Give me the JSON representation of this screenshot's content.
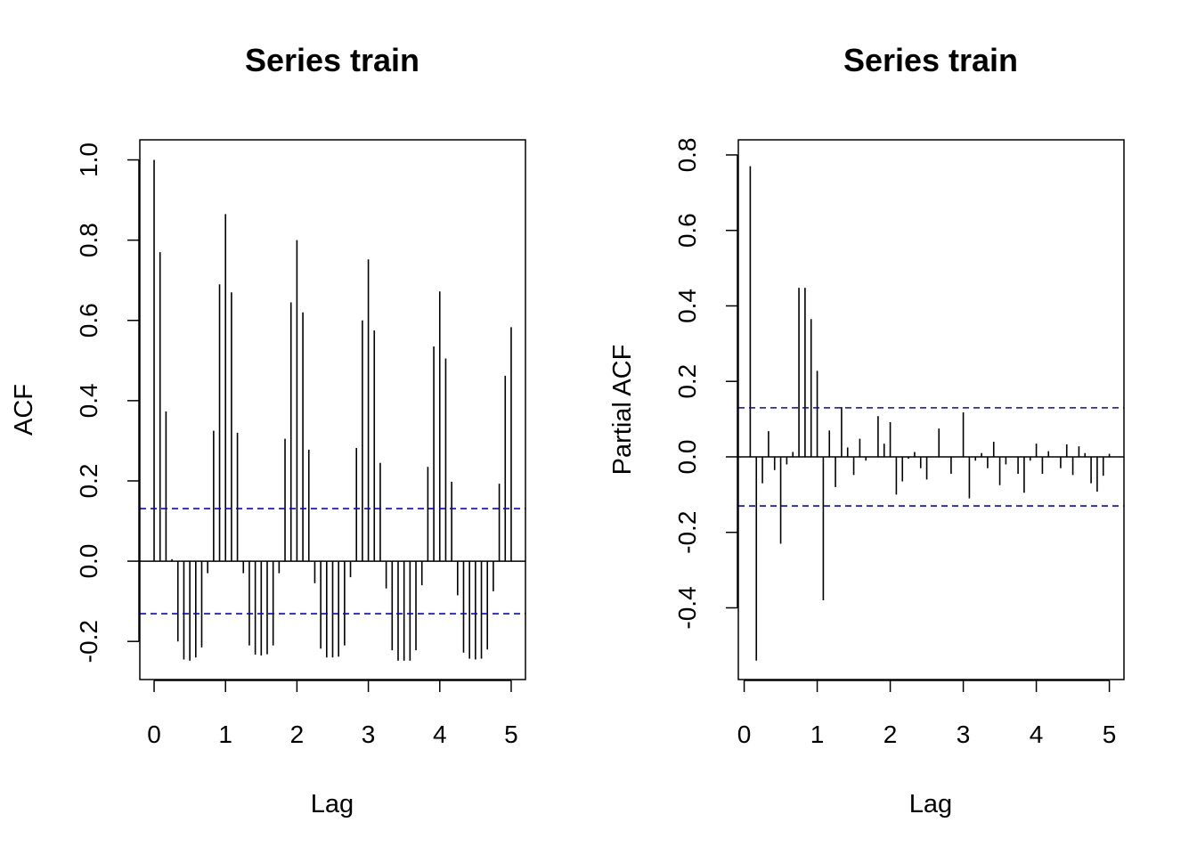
{
  "colors": {
    "bars": "#000000",
    "confidence_band": "#0000FF",
    "frame": "#000000",
    "background": "#FFFFFF"
  },
  "chart_data": [
    {
      "type": "bar",
      "title": "Series  train",
      "xlabel": "Lag",
      "ylabel": "ACF",
      "xlim": [
        -0.2,
        5.2
      ],
      "ylim": [
        -0.295,
        1.05
      ],
      "x_ticks": [
        0,
        1,
        2,
        3,
        4,
        5
      ],
      "y_ticks": [
        -0.2,
        0.0,
        0.2,
        0.4,
        0.6,
        0.8,
        1.0
      ],
      "x_tick_labels": [
        "0",
        "1",
        "2",
        "3",
        "4",
        "5"
      ],
      "y_tick_labels": [
        "-0.2",
        "0.0",
        "0.2",
        "0.4",
        "0.6",
        "0.8",
        "1.0"
      ],
      "confidence_bounds": [
        0.131,
        -0.131
      ],
      "grid": false,
      "lag_step": 0.08333,
      "values": [
        1.0,
        0.77,
        0.373,
        0.005,
        -0.2,
        -0.245,
        -0.248,
        -0.24,
        -0.215,
        -0.03,
        0.325,
        0.69,
        0.865,
        0.67,
        0.32,
        -0.03,
        -0.21,
        -0.233,
        -0.235,
        -0.232,
        -0.21,
        -0.03,
        0.305,
        0.645,
        0.8,
        0.62,
        0.278,
        -0.055,
        -0.218,
        -0.24,
        -0.24,
        -0.238,
        -0.21,
        -0.04,
        0.282,
        0.6,
        0.752,
        0.575,
        0.245,
        -0.068,
        -0.222,
        -0.248,
        -0.248,
        -0.248,
        -0.222,
        -0.06,
        0.235,
        0.535,
        0.672,
        0.505,
        0.198,
        -0.085,
        -0.228,
        -0.243,
        -0.245,
        -0.243,
        -0.22,
        -0.075,
        0.193,
        0.462,
        0.583
      ]
    },
    {
      "type": "bar",
      "title": "Series  train",
      "xlabel": "Lag",
      "ylabel": "Partial ACF",
      "xlim": [
        -0.08,
        5.2
      ],
      "ylim": [
        -0.59,
        0.84
      ],
      "x_ticks": [
        0,
        1,
        2,
        3,
        4,
        5
      ],
      "y_ticks": [
        -0.4,
        -0.2,
        0.0,
        0.2,
        0.4,
        0.6,
        0.8
      ],
      "x_tick_labels": [
        "0",
        "1",
        "2",
        "3",
        "4",
        "5"
      ],
      "y_tick_labels": [
        "-0.4",
        "-0.2",
        "0.0",
        "0.2",
        "0.4",
        "0.6",
        "0.8"
      ],
      "confidence_bounds": [
        0.13,
        -0.13
      ],
      "grid": false,
      "lag_step": 0.08333,
      "lag_start": 0.08333,
      "values": [
        0.77,
        -0.54,
        -0.07,
        0.068,
        -0.035,
        -0.23,
        -0.02,
        0.013,
        0.448,
        0.448,
        0.365,
        0.228,
        -0.38,
        0.07,
        -0.08,
        0.132,
        0.025,
        -0.048,
        0.048,
        -0.01,
        0.0,
        0.108,
        0.035,
        0.092,
        -0.1,
        -0.065,
        -0.005,
        0.013,
        -0.03,
        -0.06,
        0.0,
        0.075,
        0.0,
        -0.045,
        0.0,
        0.118,
        -0.11,
        -0.01,
        0.01,
        -0.03,
        0.04,
        -0.075,
        -0.02,
        0.0,
        -0.045,
        -0.095,
        -0.01,
        0.035,
        -0.045,
        0.015,
        0.0,
        -0.03,
        0.033,
        -0.048,
        0.028,
        0.01,
        -0.07,
        -0.092,
        -0.05,
        0.008
      ]
    }
  ]
}
